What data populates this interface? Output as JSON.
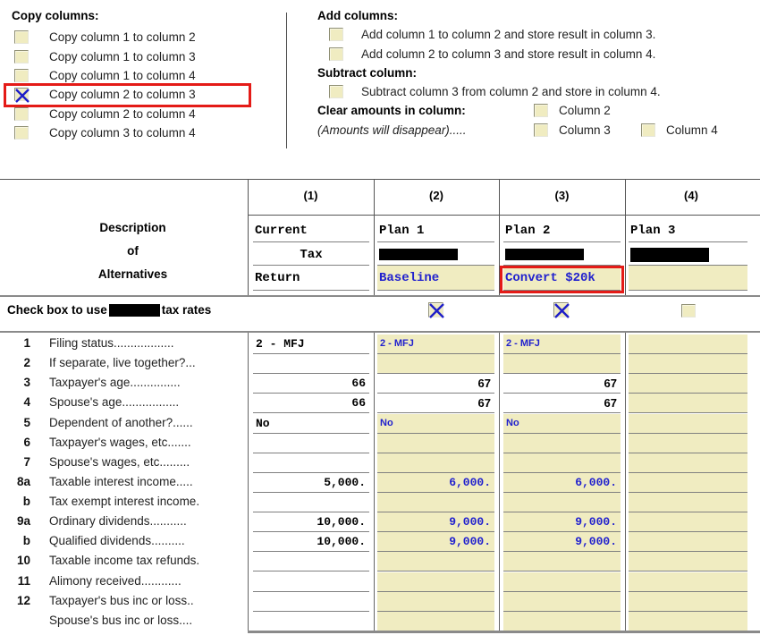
{
  "colors": {
    "accent_blue": "#2121CE",
    "field_yellow": "#F0ECC1",
    "highlight_red": "#E41B17",
    "line_gray": "#808080"
  },
  "copy_section": {
    "heading": "Copy columns:",
    "items": [
      {
        "label": "Copy column 1 to column 2",
        "checked": false,
        "highlighted": false
      },
      {
        "label": "Copy column 1 to column 3",
        "checked": false,
        "highlighted": false
      },
      {
        "label": "Copy column 1 to column 4",
        "checked": false,
        "highlighted": false
      },
      {
        "label": "Copy column 2 to column 3",
        "checked": true,
        "highlighted": true
      },
      {
        "label": "Copy column 2 to column 4",
        "checked": false,
        "highlighted": false
      },
      {
        "label": "Copy column 3 to column 4",
        "checked": false,
        "highlighted": false
      }
    ]
  },
  "add_section": {
    "heading": "Add columns:",
    "items": [
      {
        "label": "Add column 1 to column 2 and store result in column 3.",
        "checked": false
      },
      {
        "label": "Add column 2 to column 3 and store result in column 4.",
        "checked": false
      }
    ]
  },
  "subtract_section": {
    "heading": "Subtract column:",
    "items": [
      {
        "label": "Subtract column 3 from column 2 and store in column 4.",
        "checked": false
      }
    ]
  },
  "clear_section": {
    "heading": "Clear amounts in column:",
    "note": "(Amounts will disappear).....",
    "options": [
      {
        "label": "Column 2",
        "checked": false
      },
      {
        "label": "Column 3",
        "checked": false
      },
      {
        "label": "Column 4",
        "checked": false
      }
    ]
  },
  "table": {
    "column_numbers": [
      "(1)",
      "(2)",
      "(3)",
      "(4)"
    ],
    "description_header": {
      "line1": "Description",
      "line2": "of",
      "line3": "Alternatives"
    },
    "plans": [
      {
        "line1": "Current",
        "line2": "Tax",
        "line3": "Return",
        "line2_redacted": false,
        "field": ""
      },
      {
        "line1": "Plan 1",
        "line2_redacted": true,
        "field": "Baseline"
      },
      {
        "line1": "Plan 2",
        "line2_redacted": true,
        "field": "Convert $20k",
        "highlighted": true
      },
      {
        "line1": "Plan 3",
        "line2_redacted": true,
        "field": ""
      }
    ],
    "rate_row": {
      "text_before": "Check box to use",
      "text_after": "tax rates",
      "redacted_middle": true,
      "checks": [
        true,
        true,
        false
      ]
    },
    "rows": [
      {
        "num": "1",
        "label": "Filing status..................",
        "c1": "2 - MFJ",
        "c1k": "t",
        "c2": "2 - MFJ",
        "c2k": "bt",
        "c3": "2 - MFJ",
        "c3k": "bt"
      },
      {
        "num": "2",
        "label": "If separate, live together?...",
        "c1": "",
        "c1k": "",
        "c2": "",
        "c2k": "",
        "c3": "",
        "c3k": ""
      },
      {
        "num": "3",
        "label": "Taxpayer's age...............",
        "c1": "66",
        "c1k": "n",
        "c2": "67",
        "c2k": "wn",
        "c3": "67",
        "c3k": "wn"
      },
      {
        "num": "4",
        "label": "Spouse's age.................",
        "c1": "66",
        "c1k": "n",
        "c2": "67",
        "c2k": "wn",
        "c3": "67",
        "c3k": "wn"
      },
      {
        "num": "5",
        "label": "Dependent of another?......",
        "c1": "No",
        "c1k": "t",
        "c2": "No",
        "c2k": "bt",
        "c3": "No",
        "c3k": "bt"
      },
      {
        "num": "6",
        "label": "Taxpayer's wages, etc.......",
        "c1": "",
        "c1k": "",
        "c2": "",
        "c2k": "",
        "c3": "",
        "c3k": ""
      },
      {
        "num": "7",
        "label": "Spouse's wages, etc.........",
        "c1": "",
        "c1k": "",
        "c2": "",
        "c2k": "",
        "c3": "",
        "c3k": ""
      },
      {
        "num": "8a",
        "label": "Taxable interest income.....",
        "c1": "5,000.",
        "c1k": "n",
        "c2": "6,000.",
        "c2k": "bn",
        "c3": "6,000.",
        "c3k": "bn"
      },
      {
        "num": "b",
        "label": "Tax exempt interest income.",
        "c1": "",
        "c1k": "",
        "c2": "",
        "c2k": "",
        "c3": "",
        "c3k": ""
      },
      {
        "num": "9a",
        "label": "Ordinary dividends...........",
        "c1": "10,000.",
        "c1k": "n",
        "c2": "9,000.",
        "c2k": "bn",
        "c3": "9,000.",
        "c3k": "bn"
      },
      {
        "num": "b",
        "label": "Qualified dividends..........",
        "c1": "10,000.",
        "c1k": "n",
        "c2": "9,000.",
        "c2k": "bn",
        "c3": "9,000.",
        "c3k": "bn"
      },
      {
        "num": "10",
        "label": "Taxable income tax refunds.",
        "c1": "",
        "c1k": "",
        "c2": "",
        "c2k": "",
        "c3": "",
        "c3k": ""
      },
      {
        "num": "11",
        "label": "Alimony received............",
        "c1": "",
        "c1k": "",
        "c2": "",
        "c2k": "",
        "c3": "",
        "c3k": ""
      },
      {
        "num": "12",
        "label": "Taxpayer's bus inc or loss..",
        "c1": "",
        "c1k": "",
        "c2": "",
        "c2k": "",
        "c3": "",
        "c3k": ""
      },
      {
        "num": "",
        "label": "Spouse's bus inc or loss....",
        "c1": "",
        "c1k": "",
        "c2": "",
        "c2k": "",
        "c3": "",
        "c3k": ""
      }
    ]
  }
}
